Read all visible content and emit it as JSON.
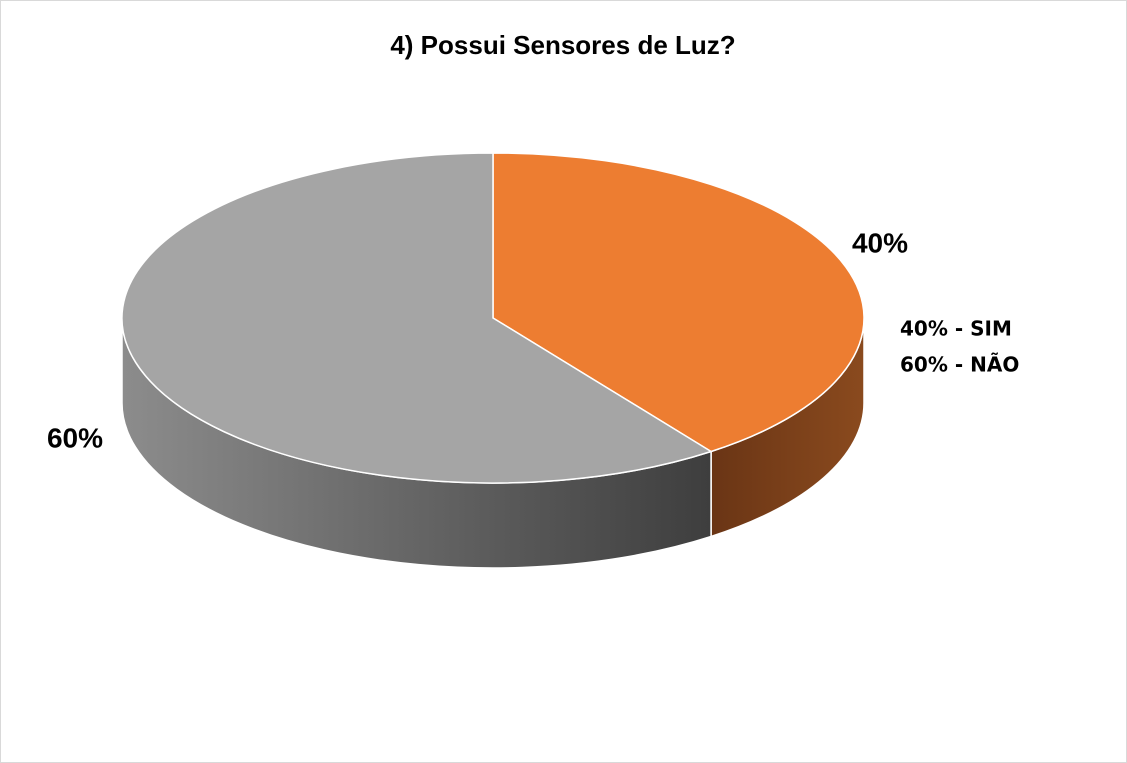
{
  "chart_data": {
    "type": "pie",
    "title": "4)  Possui Sensores de Luz?",
    "values": [
      40,
      60
    ],
    "value_labels": [
      "40%",
      "60%"
    ],
    "colors": [
      "#ed7d31",
      "#a5a5a5"
    ],
    "annotations": [
      "40% - SIM",
      "60% - NÃO"
    ]
  }
}
